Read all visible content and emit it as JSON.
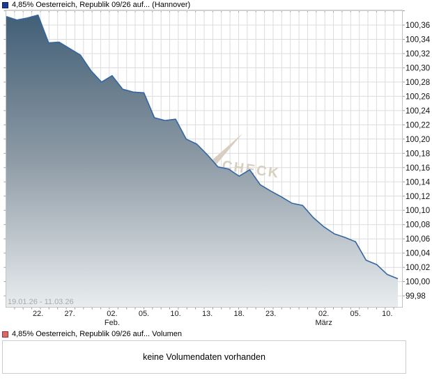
{
  "price_legend": {
    "label": "4,85% Oesterreich, Republik 09/26 auf... (Hannover)",
    "marker_color": "#1d3a91"
  },
  "volume_legend": {
    "label": "4,85% Oesterreich, Republik 09/26 auf... Volumen",
    "marker_color": "#d96a6a"
  },
  "volume_panel": {
    "message": "keine Volumendaten vorhanden"
  },
  "chart_data": {
    "type": "area",
    "title": "4,85% Oesterreich, Republik 09/26 auf... (Hannover)",
    "date_range_label": "19.01.26 - 11.03.26",
    "watermark": "CHECK",
    "watermark_color": "#d9cfc0",
    "grid": true,
    "legend_position": "top-left",
    "ylim": [
      99.964,
      100.381
    ],
    "y_grid_max": 100.38,
    "y_tick_step": 0.02,
    "y_ticks": [
      {
        "value": 100.36,
        "label": "100,36"
      },
      {
        "value": 100.34,
        "label": "100,34"
      },
      {
        "value": 100.32,
        "label": "100,32"
      },
      {
        "value": 100.3,
        "label": "100,30"
      },
      {
        "value": 100.28,
        "label": "100,28"
      },
      {
        "value": 100.26,
        "label": "100,26"
      },
      {
        "value": 100.24,
        "label": "100,24"
      },
      {
        "value": 100.22,
        "label": "100,22"
      },
      {
        "value": 100.2,
        "label": "100,20"
      },
      {
        "value": 100.18,
        "label": "100,18"
      },
      {
        "value": 100.16,
        "label": "100,16"
      },
      {
        "value": 100.14,
        "label": "100,14"
      },
      {
        "value": 100.12,
        "label": "100,12"
      },
      {
        "value": 100.1,
        "label": "100,10"
      },
      {
        "value": 100.08,
        "label": "100,08"
      },
      {
        "value": 100.06,
        "label": "100,06"
      },
      {
        "value": 100.04,
        "label": "100,04"
      },
      {
        "value": 100.02,
        "label": "100,02"
      },
      {
        "value": 100.0,
        "label": "100,00"
      },
      {
        "value": 99.98,
        "label": "99,98"
      }
    ],
    "x_ticks": [
      {
        "index": 3,
        "label": "22."
      },
      {
        "index": 6,
        "label": "27."
      },
      {
        "index": 10,
        "label": "02."
      },
      {
        "index": 13,
        "label": "05."
      },
      {
        "index": 16,
        "label": "10."
      },
      {
        "index": 19,
        "label": "13."
      },
      {
        "index": 22,
        "label": "18."
      },
      {
        "index": 25,
        "label": "23."
      },
      {
        "index": 30,
        "label": "02."
      },
      {
        "index": 33,
        "label": "05."
      },
      {
        "index": 36,
        "label": "10."
      }
    ],
    "x_month_labels": [
      {
        "index": 10,
        "label": "Feb."
      },
      {
        "index": 30,
        "label": "März"
      }
    ],
    "series": [
      {
        "name": "4,85% Oesterreich, Republik 09/26 auf... (Hannover)",
        "color": "#3366a2",
        "fill_gradient": [
          "#3f5d75",
          "#8d9aa5",
          "#e9edef"
        ],
        "values": [
          100.372,
          100.367,
          100.37,
          100.374,
          100.335,
          100.336,
          100.327,
          100.318,
          100.296,
          100.28,
          100.289,
          100.27,
          100.266,
          100.265,
          100.23,
          100.226,
          100.228,
          100.2,
          100.193,
          100.178,
          100.161,
          100.158,
          100.148,
          100.157,
          100.136,
          100.127,
          100.119,
          100.11,
          100.107,
          100.09,
          100.077,
          100.067,
          100.062,
          100.056,
          100.03,
          100.024,
          100.01,
          100.004
        ]
      }
    ]
  }
}
